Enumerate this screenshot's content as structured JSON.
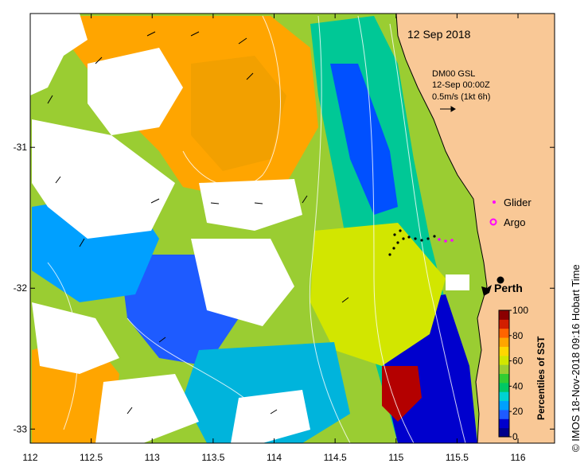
{
  "map": {
    "date_label": "12 Sep 2018",
    "current_block": {
      "line1": "DM00 GSL",
      "line2": "12-Sep 00:00Z",
      "line3": "0.5m/s (1kt 6h)"
    },
    "legend": {
      "glider": "Glider",
      "argo": "Argo"
    },
    "city_label": "Perth",
    "credit": "© IMOS 18-Nov-2018 09:16 Hobart Time",
    "colors": {
      "land": "#f9c896",
      "cloud": "#ffffff",
      "glider_marker": "#ff00ff",
      "argo_marker": "#ff00ff",
      "city_marker": "#000000"
    }
  },
  "axes": {
    "x_ticks": [
      "112",
      "112.5",
      "113",
      "113.5",
      "114",
      "114.5",
      "115",
      "115.5",
      "116"
    ],
    "x_values": [
      112,
      112.5,
      113,
      113.5,
      114,
      114.5,
      115,
      115.5,
      116
    ],
    "y_ticks": [
      "-31",
      "-32",
      "-33"
    ],
    "y_values": [
      -31,
      -32,
      -33
    ],
    "lon_range": [
      112,
      116.3
    ],
    "lat_range": [
      -33.1,
      -30.05
    ]
  },
  "colorbar": {
    "label": "Percentiles of SST",
    "ticks": [
      "0",
      "20",
      "40",
      "60",
      "80",
      "100"
    ],
    "tick_values": [
      0,
      20,
      40,
      60,
      80,
      100
    ],
    "colors": [
      "#00008b",
      "#0000cd",
      "#1e5bff",
      "#00a0ff",
      "#00d2d2",
      "#00c864",
      "#32cd32",
      "#9acd32",
      "#d2e600",
      "#ffd700",
      "#ffa500",
      "#ff6400",
      "#d21e00",
      "#8b0000"
    ]
  }
}
